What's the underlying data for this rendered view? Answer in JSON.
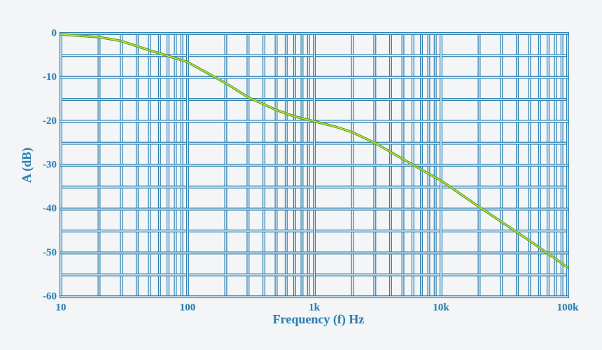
{
  "chart_data": {
    "type": "line",
    "x_label": "Frequency (f) Hz",
    "y_label": "A (dB)",
    "x": [
      10,
      20,
      30,
      50,
      70,
      100,
      150,
      200,
      300,
      500,
      700,
      1000,
      1500,
      2000,
      3000,
      5000,
      7000,
      10000,
      20000,
      50000,
      100000
    ],
    "series": [
      {
        "color": "#c9e23c",
        "outline": "#4f9a2a",
        "values": [
          -0.2,
          -0.8,
          -1.7,
          -3.8,
          -5.1,
          -6.5,
          -9.3,
          -11.3,
          -14.5,
          -17.4,
          -18.9,
          -20,
          -21.3,
          -22.5,
          -24.9,
          -28.6,
          -31,
          -33.5,
          -39.5,
          -47.2,
          -53.3
        ]
      }
    ],
    "xscale": "log",
    "xlim": [
      10,
      100000
    ],
    "xticks": [
      10,
      100,
      {
        "value": 1000,
        "label": "1k"
      },
      {
        "value": 10000,
        "label": "10k"
      },
      {
        "value": 100000,
        "label": "100k"
      }
    ],
    "ylim": [
      -60,
      0
    ],
    "yticks": [
      0,
      -10,
      -20,
      -30,
      -40,
      -50,
      -60
    ],
    "grid": true,
    "minor_grid": true,
    "grid_color": "#2b7fb1"
  }
}
